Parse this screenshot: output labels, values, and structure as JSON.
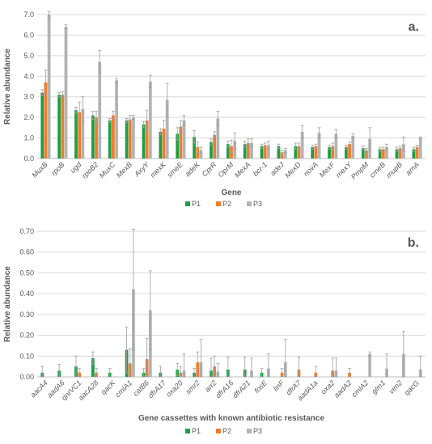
{
  "colors": {
    "P1": "#1e9e45",
    "P2": "#ef7d2e",
    "P3": "#b3b3b3",
    "grid": "#d9d9d9",
    "err": "#9e9e9e"
  },
  "chart_data": [
    {
      "type": "bar",
      "panel_label": "a.",
      "xlabel": "Gene",
      "ylabel": "Relative abundance",
      "ylim": [
        0,
        7
      ],
      "yticks": [
        "0.0",
        "1.0",
        "2.0",
        "3.0",
        "4.0",
        "5.0",
        "6.0",
        "7.0"
      ],
      "grid": true,
      "legend": "bottom-center",
      "categories": [
        "MuxB",
        "rpoB",
        "ugd",
        "rpoB2",
        "MuxC",
        "MexB",
        "AxyY",
        "mexK",
        "smeE",
        "adeK",
        "CprR",
        "OprM",
        "MexA",
        "bcr-1",
        "adeJ",
        "MexD",
        "novA",
        "MexF",
        "mexY",
        "PmpM",
        "cmeB",
        "mupB",
        "arnA"
      ],
      "series": [
        {
          "name": "P1",
          "values": [
            3.2,
            3.1,
            2.35,
            2.1,
            1.85,
            1.85,
            1.65,
            1.3,
            1.2,
            1.05,
            0.8,
            0.7,
            0.7,
            0.6,
            0.6,
            0.6,
            0.55,
            0.55,
            0.55,
            0.5,
            0.45,
            0.45,
            0.45
          ],
          "errors": [
            0.15,
            0.1,
            0.15,
            0.2,
            0.1,
            0.1,
            0.15,
            0.15,
            0.3,
            0.3,
            0.15,
            0.15,
            0.15,
            0.1,
            0.1,
            0.15,
            0.1,
            0.1,
            0.1,
            0.1,
            0.1,
            0.1,
            0.1
          ]
        },
        {
          "name": "P2",
          "values": [
            3.7,
            3.1,
            2.25,
            2.0,
            2.1,
            1.9,
            1.85,
            1.45,
            1.55,
            0.55,
            1.15,
            0.6,
            0.75,
            0.65,
            0.3,
            0.6,
            0.6,
            0.6,
            0.7,
            0.4,
            0.45,
            0.5,
            0.55
          ],
          "errors": [
            0.6,
            0.15,
            0.5,
            0.3,
            0.2,
            0.2,
            0.5,
            0.4,
            0.3,
            0.25,
            0.15,
            0.3,
            0.2,
            0.1,
            0.1,
            0.15,
            0.1,
            0.15,
            0.1,
            0.1,
            0.1,
            0.1,
            0.1
          ]
        },
        {
          "name": "P3",
          "values": [
            7.0,
            6.4,
            2.4,
            4.7,
            3.8,
            2.0,
            3.75,
            2.85,
            1.85,
            0.4,
            1.95,
            0.85,
            0.75,
            0.65,
            0.4,
            1.3,
            1.25,
            1.2,
            1.1,
            0.95,
            0.55,
            0.7,
            1.0
          ],
          "errors": [
            0.15,
            0.1,
            0.6,
            0.55,
            0.1,
            0.1,
            0.3,
            0.8,
            0.25,
            0.15,
            0.35,
            0.4,
            0.2,
            0.2,
            0.1,
            0.3,
            0.25,
            0.2,
            0.1,
            0.55,
            0.15,
            0.35,
            0.05
          ]
        }
      ]
    },
    {
      "type": "bar",
      "panel_label": "b.",
      "xlabel": "Gene cassettes with known antibiotic resistance",
      "ylabel": "Relative abundance",
      "ylim": [
        0,
        0.7
      ],
      "yticks": [
        "0.00",
        "0.10",
        "0.20",
        "0.30",
        "0.40",
        "0.50",
        "0.60",
        "0.70"
      ],
      "grid": true,
      "legend": "bottom-center",
      "categories": [
        "aacA4",
        "aadA6",
        "qnrVC1",
        "aacA28",
        "qacK",
        "cmlA1",
        "catB6",
        "dfrA17",
        "oxa20",
        "smr2",
        "arr2",
        "dfrA16",
        "dfrA21",
        "fosE",
        "linF",
        "dfrA7",
        "aadA1a",
        "oxa2",
        "aadA2",
        "cmlA2",
        "glm1",
        "vim2",
        "qacG"
      ],
      "series": [
        {
          "name": "P1",
          "values": [
            0.02,
            0.03,
            0.05,
            0.09,
            0.02,
            0.13,
            0.02,
            0.02,
            0.035,
            0.02,
            0.03,
            0.035,
            0.035,
            0.02,
            0,
            0,
            0,
            0,
            0,
            0,
            0,
            0,
            0
          ],
          "errors": [
            0.03,
            0.03,
            0.05,
            0.03,
            0.02,
            0.11,
            0.02,
            0.03,
            0.03,
            0.02,
            0.06,
            0.06,
            0.06,
            0.02,
            0,
            0,
            0,
            0,
            0,
            0,
            0,
            0,
            0
          ]
        },
        {
          "name": "P2",
          "values": [
            0,
            0,
            0.02,
            0.02,
            0,
            0.065,
            0.085,
            0,
            0.02,
            0.07,
            0.05,
            0,
            0,
            0,
            0.02,
            0.035,
            0.02,
            0.03,
            0.02,
            0,
            0,
            0,
            0
          ],
          "errors": [
            0,
            0,
            0.02,
            0.02,
            0,
            0.07,
            0.1,
            0,
            0.03,
            0.05,
            0.05,
            0,
            0,
            0,
            0.02,
            0.06,
            0.03,
            0.06,
            0.02,
            0,
            0,
            0,
            0
          ]
        },
        {
          "name": "P3",
          "values": [
            0,
            0,
            0,
            0,
            0,
            0.42,
            0.32,
            0,
            0.03,
            0.07,
            0.025,
            0,
            0.03,
            0.04,
            0.07,
            0,
            0,
            0.03,
            0,
            0.11,
            0.04,
            0.11,
            0.035
          ],
          "errors": [
            0,
            0,
            0,
            0,
            0,
            0.29,
            0.19,
            0,
            0.08,
            0.11,
            0.04,
            0,
            0.06,
            0.07,
            0.11,
            0,
            0,
            0.06,
            0,
            0.01,
            0.07,
            0.11,
            0.065
          ]
        }
      ]
    }
  ]
}
